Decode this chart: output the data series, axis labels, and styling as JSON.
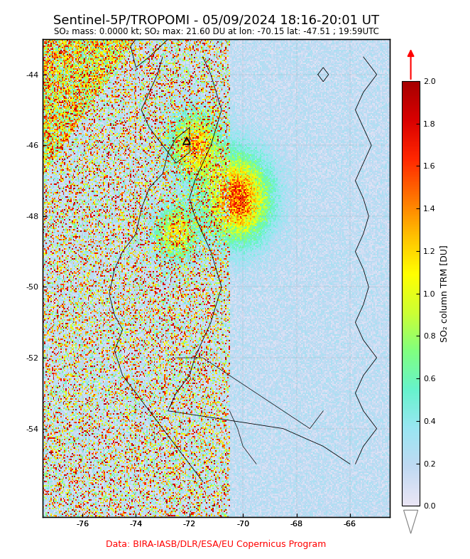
{
  "title": "Sentinel-5P/TROPOMI - 05/09/2024 18:16-20:01 UT",
  "subtitle": "SO₂ mass: 0.0000 kt; SO₂ max: 21.60 DU at lon: -70.15 lat: -47.51 ; 19:59UTC",
  "colorbar_label": "SO₂ column TRM [DU]",
  "colorbar_ticks": [
    0.0,
    0.2,
    0.4,
    0.6,
    0.8,
    1.0,
    1.2,
    1.4,
    1.6,
    1.8,
    2.0
  ],
  "colorbar_ticklabels": [
    "0.0",
    "0.2",
    "0.4",
    "0.6",
    "0.8",
    "1.0",
    "1.2",
    "1.4",
    "1.6",
    "1.8",
    "2.0"
  ],
  "lon_min": -77.5,
  "lon_max": -64.5,
  "lat_min": -56.5,
  "lat_max": -43.0,
  "lon_ticks": [
    -76,
    -74,
    -72,
    -70,
    -68,
    -66
  ],
  "lat_ticks": [
    -44,
    -46,
    -48,
    -50,
    -52,
    -54
  ],
  "vmin": 0.0,
  "vmax": 2.0,
  "data_credit": "Data: BIRA-IASB/DLR/ESA/EU Copernicus Program",
  "title_fontsize": 13,
  "subtitle_fontsize": 8.5,
  "tick_fontsize": 8,
  "colorbar_tick_fontsize": 8,
  "colorbar_label_fontsize": 9,
  "volcano_lon": -72.1,
  "volcano_lat": -45.87,
  "map_bg_color": "#ffffff",
  "fig_bg_color": "#ffffff"
}
